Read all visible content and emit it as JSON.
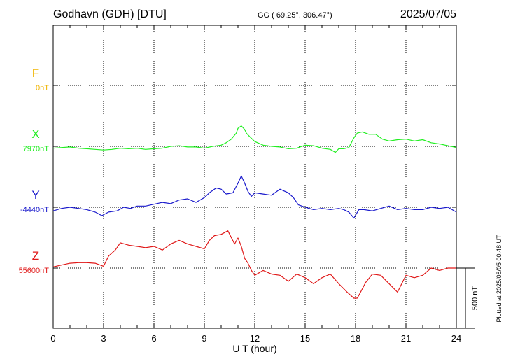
{
  "header": {
    "station": "Godhavn (GDH)  [DTU]",
    "coords": "GG ( 69.25°, 306.47°)",
    "date": "2025/07/05"
  },
  "footer": {
    "plotted": "Plotted at 2025/08/05 00:48 UT"
  },
  "chart_data": {
    "type": "line",
    "xlabel": "U T (hour)",
    "xlim": [
      0,
      24
    ],
    "xticks": [
      "0",
      "3",
      "6",
      "9",
      "12",
      "15",
      "18",
      "21",
      "24"
    ],
    "scale_label": "500 nT",
    "colors": {
      "F": "#f0b400",
      "X": "#22ee22",
      "Y": "#1a1acc",
      "Z": "#e01818"
    },
    "series": [
      {
        "name": "F",
        "baseline": "0nT",
        "x": [],
        "y": []
      },
      {
        "name": "X",
        "baseline": "7970nT",
        "x": [
          0,
          0.5,
          1,
          1.5,
          2,
          2.5,
          3,
          3.5,
          4,
          4.5,
          5,
          5.5,
          6,
          6.5,
          7,
          7.5,
          8,
          8.5,
          9,
          9.5,
          10,
          10.3,
          10.6,
          10.9,
          11.0,
          11.2,
          11.4,
          11.5,
          11.7,
          12,
          12.5,
          13,
          13.5,
          14,
          14.5,
          15,
          15.5,
          16,
          16.5,
          16.8,
          17,
          17.3,
          17.6,
          17.9,
          18.1,
          18.4,
          18.8,
          19.2,
          19.6,
          20,
          20.5,
          21,
          21.5,
          22,
          22.5,
          23,
          23.5,
          24
        ],
        "y": [
          -15,
          -10,
          -5,
          -15,
          -20,
          -25,
          -30,
          -25,
          -15,
          -20,
          -15,
          -25,
          -20,
          -15,
          0,
          5,
          -5,
          -5,
          -15,
          0,
          10,
          30,
          60,
          110,
          150,
          170,
          140,
          110,
          80,
          40,
          10,
          0,
          -5,
          -20,
          -15,
          10,
          5,
          -15,
          -25,
          -50,
          -20,
          -20,
          -10,
          70,
          110,
          120,
          100,
          100,
          60,
          45,
          55,
          60,
          45,
          55,
          30,
          20,
          5,
          -10
        ]
      },
      {
        "name": "Y",
        "baseline": "-4440nT",
        "x": [
          0,
          0.5,
          1,
          1.5,
          2,
          2.5,
          2.9,
          3.3,
          3.8,
          4.2,
          4.6,
          5,
          5.5,
          6,
          6.5,
          7,
          7.5,
          8,
          8.5,
          9,
          9.3,
          9.7,
          10,
          10.3,
          10.7,
          11,
          11.2,
          11.4,
          11.6,
          11.8,
          12,
          12.5,
          13,
          13.5,
          14,
          14.3,
          14.6,
          15,
          15.5,
          16,
          16.5,
          17,
          17.3,
          17.6,
          17.9,
          18.2,
          18.5,
          19,
          19.5,
          20,
          20.5,
          21,
          21.5,
          22,
          22.5,
          23,
          23.5,
          24
        ],
        "y": [
          -30,
          -10,
          0,
          -10,
          -20,
          -40,
          -70,
          -40,
          -30,
          0,
          -10,
          10,
          10,
          25,
          40,
          30,
          60,
          70,
          40,
          80,
          120,
          160,
          150,
          110,
          120,
          200,
          260,
          200,
          130,
          90,
          120,
          110,
          100,
          150,
          120,
          80,
          20,
          0,
          -20,
          -10,
          -20,
          -10,
          -20,
          -40,
          -90,
          -20,
          -20,
          -30,
          -10,
          10,
          -20,
          -10,
          -20,
          -20,
          0,
          -10,
          0,
          -40
        ]
      },
      {
        "name": "Z",
        "baseline": "55600nT",
        "x": [
          0,
          0.5,
          1,
          1.5,
          2,
          2.5,
          3,
          3.3,
          3.7,
          4,
          4.5,
          5,
          5.5,
          6,
          6.5,
          7,
          7.5,
          8,
          8.5,
          9,
          9.3,
          9.6,
          10,
          10.4,
          10.8,
          11.0,
          11.2,
          11.4,
          11.6,
          11.8,
          12,
          12.5,
          13,
          13.5,
          14,
          14.5,
          15,
          15.5,
          16,
          16.5,
          17,
          17.5,
          17.9,
          18.1,
          18.3,
          18.6,
          19,
          19.5,
          20,
          20.5,
          21,
          21.5,
          22,
          22.5,
          23,
          23.5,
          24
        ],
        "y": [
          10,
          25,
          40,
          45,
          45,
          40,
          15,
          100,
          150,
          210,
          190,
          180,
          170,
          180,
          150,
          200,
          230,
          200,
          180,
          160,
          230,
          270,
          280,
          310,
          200,
          250,
          180,
          80,
          40,
          -20,
          -60,
          -20,
          -50,
          -60,
          -110,
          -50,
          -80,
          -130,
          -80,
          -50,
          -130,
          -200,
          -250,
          -250,
          -200,
          -120,
          -50,
          -60,
          -130,
          -200,
          -60,
          -80,
          -60,
          0,
          -20,
          0,
          0
        ]
      }
    ]
  }
}
